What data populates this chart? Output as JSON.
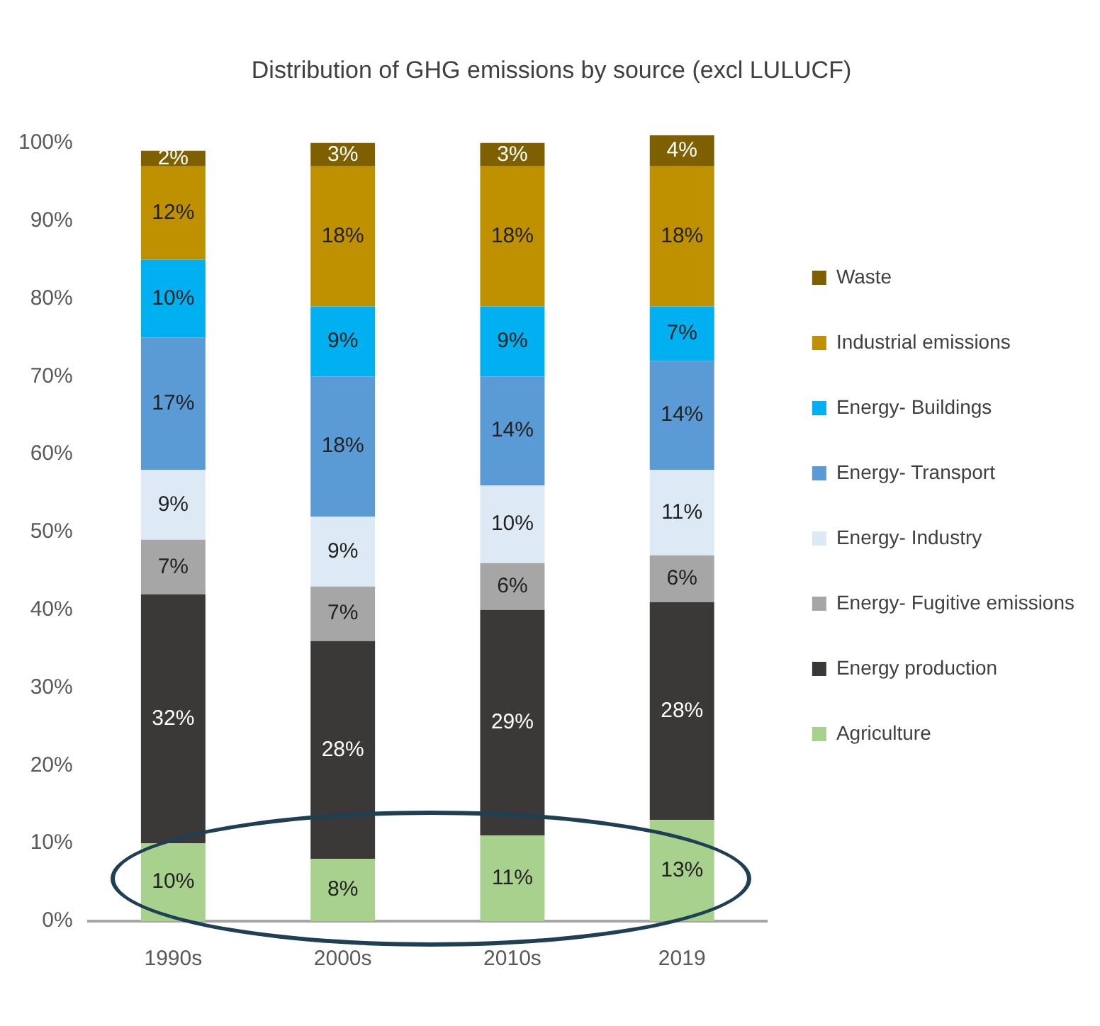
{
  "chart_data": {
    "type": "bar",
    "title": "Distribution of GHG emissions by source (excl LULUCF)",
    "stacked": true,
    "categories": [
      "1990s",
      "2000s",
      "2010s",
      "2019"
    ],
    "series": [
      {
        "name": "Agriculture",
        "color": "#a9d18e",
        "values": [
          10,
          8,
          11,
          13
        ],
        "value_labels": [
          "10%",
          "8%",
          "11%",
          "13%"
        ]
      },
      {
        "name": "Energy production",
        "color": "#3b3838",
        "values": [
          32,
          28,
          29,
          28
        ],
        "value_labels": [
          "32%",
          "28%",
          "29%",
          "28%"
        ]
      },
      {
        "name": "Energy- Fugitive emissions",
        "color": "#a6a6a6",
        "values": [
          7,
          7,
          6,
          6
        ],
        "value_labels": [
          "7%",
          "7%",
          "6%",
          "6%"
        ]
      },
      {
        "name": "Energy- Industry",
        "color": "#dee9f6",
        "values": [
          9,
          9,
          10,
          11
        ],
        "value_labels": [
          "9%",
          "9%",
          "10%",
          "11%"
        ]
      },
      {
        "name": "Energy- Transport",
        "color": "#5b9bd5",
        "values": [
          17,
          18,
          14,
          14
        ],
        "value_labels": [
          "17%",
          "18%",
          "14%",
          "14%"
        ]
      },
      {
        "name": "Energy- Buildings",
        "color": "#00b0f0",
        "values": [
          10,
          9,
          9,
          7
        ],
        "value_labels": [
          "10%",
          "9%",
          "9%",
          "7%"
        ]
      },
      {
        "name": "Industrial emissions",
        "color": "#bf9000",
        "values": [
          12,
          18,
          18,
          18
        ],
        "value_labels": [
          "12%",
          "18%",
          "18%",
          "18%"
        ]
      },
      {
        "name": "Waste",
        "color": "#7f6000",
        "values": [
          2,
          3,
          3,
          4
        ],
        "value_labels": [
          "2%",
          "3%",
          "3%",
          "4%"
        ]
      }
    ],
    "ylim": [
      0,
      101
    ],
    "yticks": [
      {
        "value": 0,
        "label": "0%"
      },
      {
        "value": 10,
        "label": "10%"
      },
      {
        "value": 20,
        "label": "20%"
      },
      {
        "value": 30,
        "label": "30%"
      },
      {
        "value": 40,
        "label": "40%"
      },
      {
        "value": 50,
        "label": "50%"
      },
      {
        "value": 60,
        "label": "60%"
      },
      {
        "value": 70,
        "label": "70%"
      },
      {
        "value": 80,
        "label": "80%"
      },
      {
        "value": 90,
        "label": "90%"
      },
      {
        "value": 100,
        "label": "100%"
      }
    ],
    "grid": false,
    "legend": "right"
  }
}
